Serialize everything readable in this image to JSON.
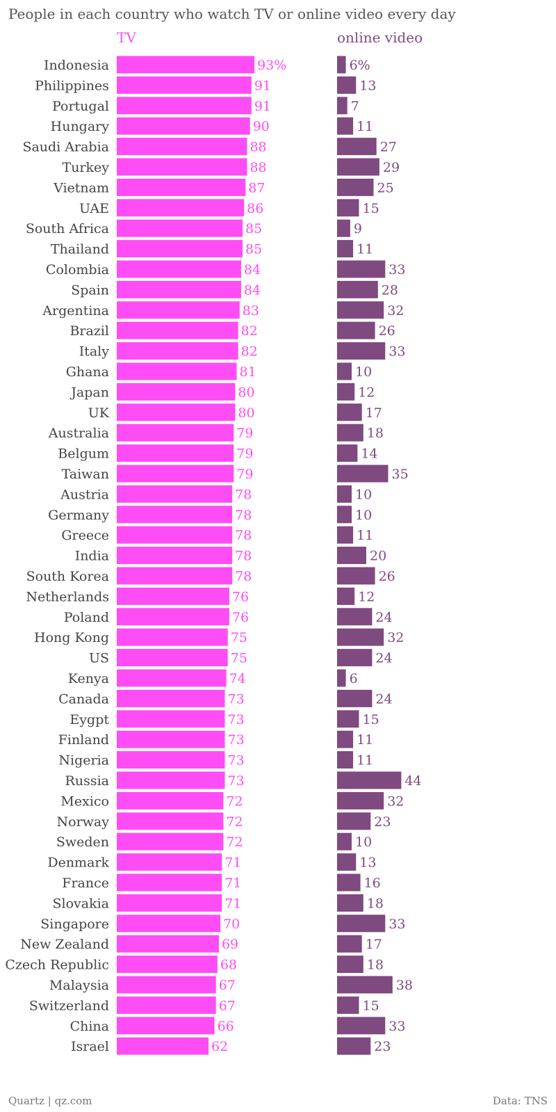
{
  "colors": {
    "tv": "#ff4df5",
    "online_video": "#7f4a80",
    "country_label": "#444444",
    "title": "#555555",
    "footer": "#777777"
  },
  "footer": {
    "credit": "Quartz | qz.com",
    "source": "Data: TNS"
  },
  "chart_data": {
    "type": "bar",
    "orientation": "horizontal",
    "title": "People in each country who watch TV or online video every day",
    "unit_suffix_first_row": "%",
    "categories": [
      "Indonesia",
      "Philippines",
      "Portugal",
      "Hungary",
      "Saudi Arabia",
      "Turkey",
      "Vietnam",
      "UAE",
      "South Africa",
      "Thailand",
      "Colombia",
      "Spain",
      "Argentina",
      "Brazil",
      "Italy",
      "Ghana",
      "Japan",
      "UK",
      "Australia",
      "Belgum",
      "Taiwan",
      "Austria",
      "Germany",
      "Greece",
      "India",
      "South Korea",
      "Netherlands",
      "Poland",
      "Hong Kong",
      "US",
      "Kenya",
      "Canada",
      "Eygpt",
      "Finland",
      "Nigeria",
      "Russia",
      "Mexico",
      "Norway",
      "Sweden",
      "Denmark",
      "France",
      "Slovakia",
      "Singapore",
      "New Zealand",
      "Czech Republic",
      "Malaysia",
      "Switzerland",
      "China",
      "Israel"
    ],
    "series": [
      {
        "name": "TV",
        "values": [
          93,
          91,
          91,
          90,
          88,
          88,
          87,
          86,
          85,
          85,
          84,
          84,
          83,
          82,
          82,
          81,
          80,
          80,
          79,
          79,
          79,
          78,
          78,
          78,
          78,
          78,
          76,
          76,
          75,
          75,
          74,
          73,
          73,
          73,
          73,
          73,
          72,
          72,
          72,
          71,
          71,
          71,
          70,
          69,
          68,
          67,
          67,
          66,
          62
        ]
      },
      {
        "name": "online video",
        "values": [
          6,
          13,
          7,
          11,
          27,
          29,
          25,
          15,
          9,
          11,
          33,
          28,
          32,
          26,
          33,
          10,
          12,
          17,
          18,
          14,
          35,
          10,
          10,
          11,
          20,
          26,
          12,
          24,
          32,
          24,
          6,
          24,
          15,
          11,
          11,
          44,
          32,
          23,
          10,
          13,
          16,
          18,
          33,
          17,
          18,
          38,
          15,
          33,
          23
        ]
      }
    ],
    "grid": false,
    "legend": "column headers at top"
  }
}
